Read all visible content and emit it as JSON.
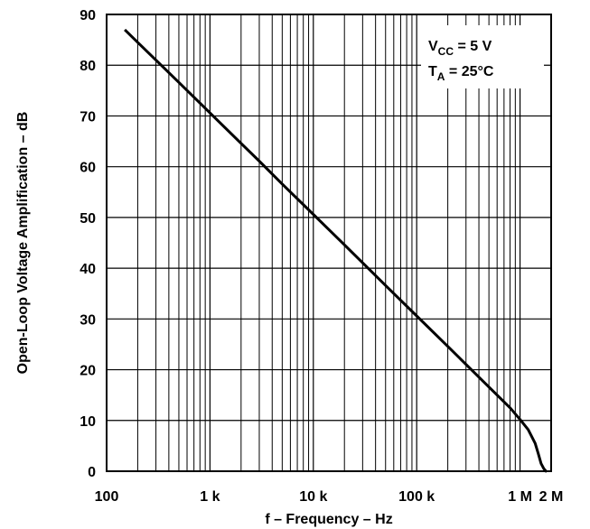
{
  "chart_data": {
    "type": "line",
    "xscale": "log",
    "xlim": [
      100,
      2000000
    ],
    "ylim": [
      0,
      90
    ],
    "grid": true,
    "xlabel": "f – Frequency – Hz",
    "ylabel": "Open-Loop Voltage Amplification – dB",
    "xticks": [
      {
        "value": 100,
        "label": "100"
      },
      {
        "value": 1000,
        "label": "1 k"
      },
      {
        "value": 10000,
        "label": "10 k"
      },
      {
        "value": 100000,
        "label": "100 k"
      },
      {
        "value": 1000000,
        "label": "1 M"
      },
      {
        "value": 2000000,
        "label": "2 M"
      }
    ],
    "yticks": [
      0,
      10,
      20,
      30,
      40,
      50,
      60,
      70,
      80,
      90
    ],
    "series": [
      {
        "x": [
          150,
          200,
          300,
          500,
          1000,
          2000,
          3000,
          5000,
          10000,
          20000,
          50000,
          100000,
          200000,
          500000,
          800000,
          1000000,
          1200000,
          1400000,
          1500000,
          1600000,
          1700000,
          1750000,
          1780000,
          1800000
        ],
        "y": [
          87,
          84.5,
          81,
          76.6,
          70.6,
          64.6,
          61.1,
          56.6,
          50.6,
          44.6,
          36.6,
          30.6,
          24.6,
          16.6,
          12.5,
          10.2,
          8.2,
          5.5,
          3.5,
          1.5,
          0.5,
          0.2,
          0,
          0
        ]
      }
    ],
    "annotation": {
      "line1": {
        "main": "V",
        "sub": "CC",
        "rest": " = 5 V"
      },
      "line2": {
        "main": "T",
        "sub": "A",
        "rest": " = 25°C"
      }
    }
  }
}
